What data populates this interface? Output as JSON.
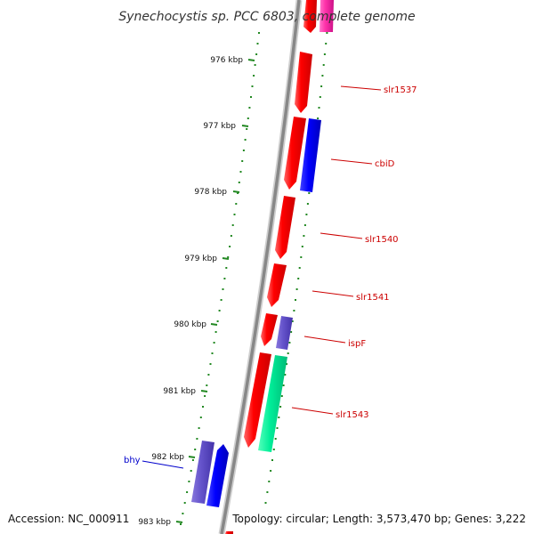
{
  "title": "Synechocystis sp. PCC 6803, complete genome",
  "footer": {
    "accession": "Accession: NC_000911",
    "topology": "Topology: circular; Length: 3,573,470 bp; Genes: 3,222"
  },
  "kbp_labels": [
    "976 kbp",
    "977 kbp",
    "978 kbp",
    "979 kbp",
    "980 kbp",
    "981 kbp",
    "982 kbp",
    "983 kbp"
  ],
  "gene_labels": {
    "slr1537": "slr1537",
    "cbiD": "cbiD",
    "slr1540": "slr1540",
    "slr1541": "slr1541",
    "ispF": "ispF",
    "slr1543": "slr1543",
    "bhy": "bhy"
  },
  "colors": {
    "red_gene": "#ff0000",
    "blue_gene": "#0000ff",
    "purple_gene": "#6655cc",
    "green_gene": "#00ee99",
    "pink_gene": "#ff33aa",
    "label_red": "#cc0000",
    "label_blue": "#0000cc",
    "tick_green": "#228822",
    "backbone": "#888888"
  }
}
